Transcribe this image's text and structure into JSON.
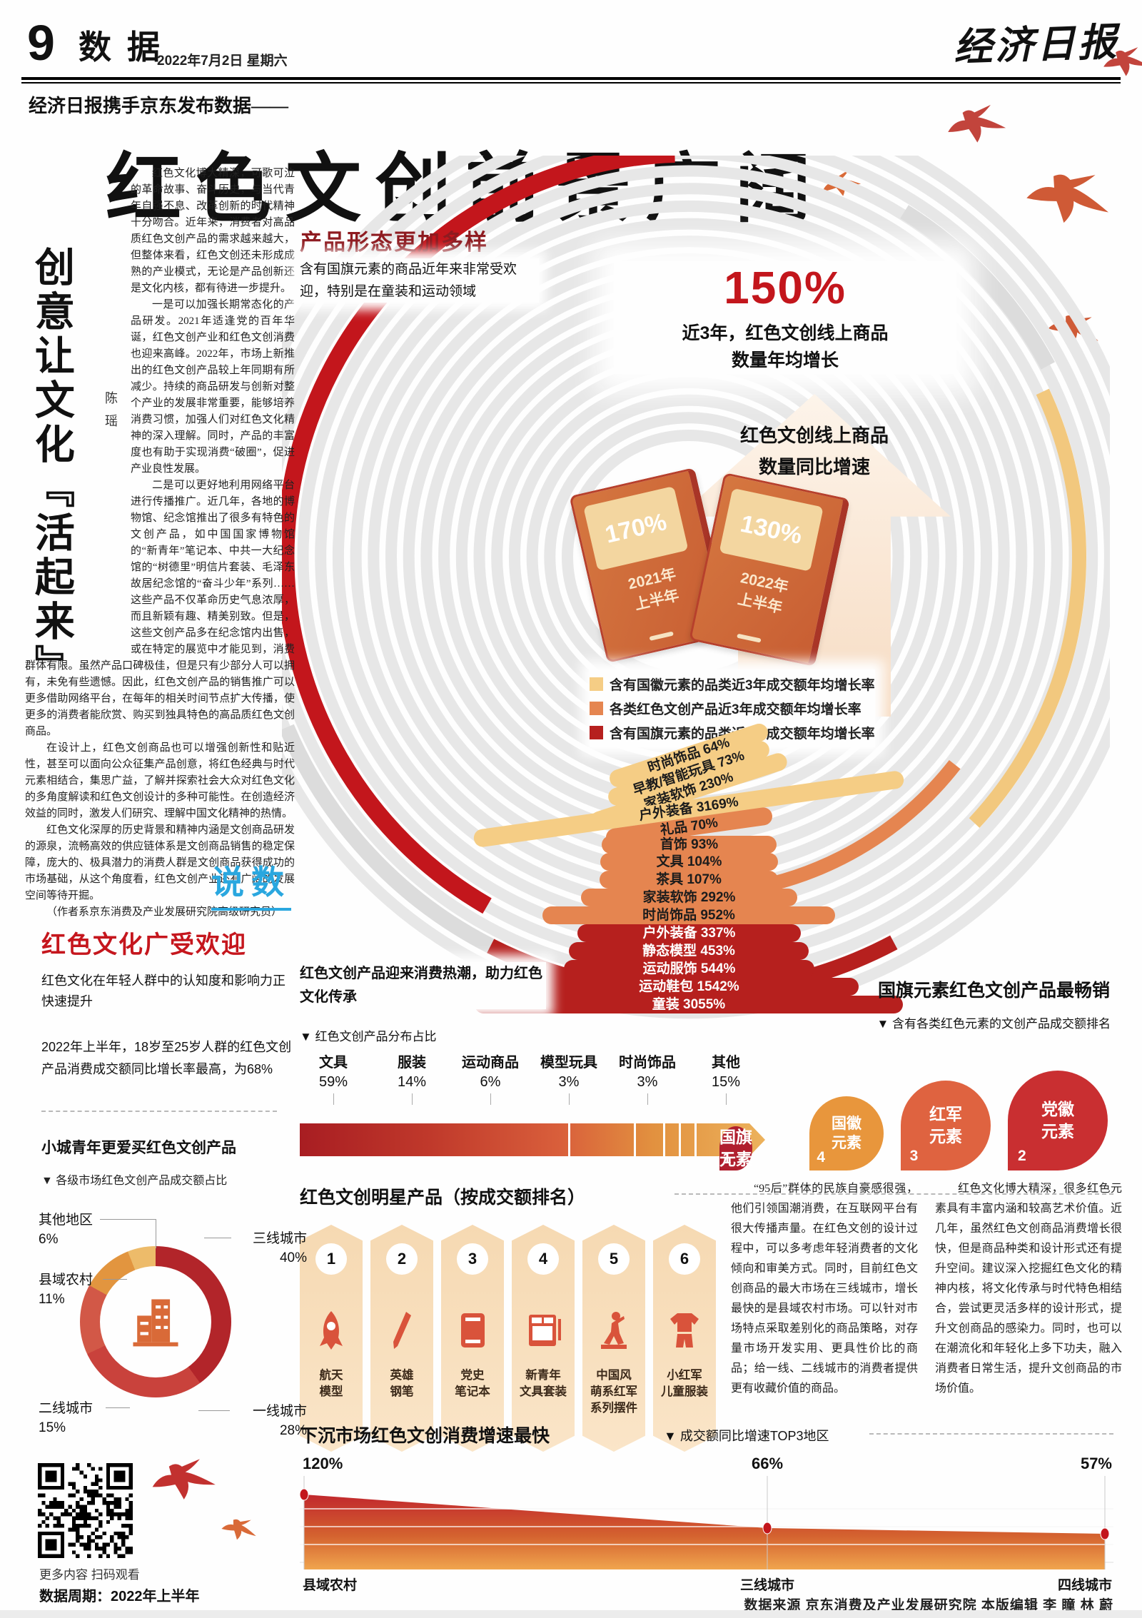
{
  "page": {
    "number": "9",
    "section": "数据",
    "date": "2022年7月2日 星期六",
    "masthead": "经济日报"
  },
  "headline": {
    "kicker": "经济日报携手京东发布数据——",
    "title": "红色文创前景广阔"
  },
  "left_article": {
    "vertical_title": "创意让文化『活起来』",
    "author": "陈瑶",
    "paragraphs": [
      "红色文化博大精深，可歌可泣的革命故事、奋斗历史，与当代青年自强不息、改革创新的时代精神十分吻合。近年来，消费者对高品质红色文创产品的需求越来越大，但整体来看，红色文创还未形成成熟的产业模式，无论是产品创新还是文化内核，都有待进一步提升。",
      "一是可以加强长期常态化的产品研发。2021年适逢党的百年华诞，红色文创产业和红色文创消费也迎来高峰。2022年，市场上新推出的红色文创产品较上年同期有所减少。持续的商品研发与创新对整个产业的发展非常重要，能够培养消费习惯，加强人们对红色文化精神的深入理解。同时，产品的丰富度也有助于实现消费“破圈”，促进产业良性发展。",
      "二是可以更好地利用网络平台进行传播推广。近几年，各地的博物馆、纪念馆推出了很多有特色的文创产品，如中国国家博物馆的“新青年”笔记本、中共一大纪念馆的“树德里”明信片套装、毛泽东故居纪念馆的“奋斗少年”系列……这些产品不仅革命历史气息浓厚，而且新颖有趣、精美别致。但是，这些文创产品多在纪念馆内出售，或在特定的展览中才能见到，消费群体有限。虽然产品口碑极佳，但是只有少部分人可以拥有，未免有些遗憾。因此，红色文创产品的销售推广可以更多借助网络平台，在每年的相关时间节点扩大传播，使更多的消费者能欣赏、购买到独具特色的高品质红色文创商品。",
      "在设计上，红色文创商品也可以增强创新性和贴近性，甚至可以面向公众征集产品创意，将红色经典与时代元素相结合，集思广益，了解并探索社会大众对红色文化的多角度解读和红色文创设计的多种可能性。在创造经济效益的同时，激发人们研究、理解中国文化精神的热情。",
      "红色文化深厚的历史背景和精神内涵是文创商品研发的源泉，流畅高效的供应链体系是文创商品销售的稳定保障，庞大的、极具潜力的消费人群是文创商品获得成功的市场基础，从这个角度看，红色文创产业还有广阔的发展空间等待开掘。"
    ],
    "byline": "（作者系京东消费及产业发展研究院高级研究员）",
    "badge": "说数"
  },
  "diverse_section": {
    "heading": "产品形态更加多样",
    "desc": "含有国旗元素的商品近年来非常受欢迎，特别是在童装和运动领域",
    "big_stat": "150%",
    "big_stat_caption": "近3年，红色文创线上商品\n数量年均增长",
    "arrow_label": "红色文创线上商品\n数量同比增速",
    "books": [
      {
        "value": "170%",
        "year": "2021年\n上半年"
      },
      {
        "value": "130%",
        "year": "2022年\n上半年"
      }
    ],
    "legend": [
      {
        "label": "含有国徽元素的品类近3年成交额年均增长率",
        "color": "#f5cd85"
      },
      {
        "label": "各类红色文创产品近3年成交额年均增长率",
        "color": "#e58550"
      },
      {
        "label": "含有国旗元素的品类近3年成交额年均增长率",
        "color": "#b6201e"
      }
    ],
    "rings": [
      {
        "label": "时尚饰品",
        "value": "64%",
        "group": "1"
      },
      {
        "label": "早教/智能玩具",
        "value": "73%",
        "group": "1"
      },
      {
        "label": "家装软饰",
        "value": "230%",
        "group": "1"
      },
      {
        "label": "户外装备",
        "value": "3169%",
        "group": "1"
      },
      {
        "label": "礼品",
        "value": "70%",
        "group": "2"
      },
      {
        "label": "首饰",
        "value": "93%",
        "group": "2"
      },
      {
        "label": "文具",
        "value": "104%",
        "group": "2"
      },
      {
        "label": "茶具",
        "value": "107%",
        "group": "2"
      },
      {
        "label": "家装软饰",
        "value": "292%",
        "group": "2"
      },
      {
        "label": "时尚饰品",
        "value": "952%",
        "group": "2"
      },
      {
        "label": "户外装备",
        "value": "337%",
        "group": "3"
      },
      {
        "label": "静态模型",
        "value": "453%",
        "group": "3"
      },
      {
        "label": "运动服饰",
        "value": "544%",
        "group": "3"
      },
      {
        "label": "运动鞋包",
        "value": "1542%",
        "group": "3"
      },
      {
        "label": "童装",
        "value": "3055%",
        "group": "3"
      }
    ]
  },
  "popular_section": {
    "heading": "红色文化广受欢迎",
    "p1": "红色文化在年轻人群中的认知度和影响力正快速提升",
    "p2": "2022年上半年，18岁至25岁人群的红色文创产品消费成交额同比增长率最高，为68%",
    "subhead": "小城青年更爱买红色文创产品",
    "donut_caption": "▼ 各级市场红色文创产品成交额占比"
  },
  "donut_labels": [
    {
      "name": "其他地区",
      "pct": "6%"
    },
    {
      "name": "县域农村",
      "pct": "11%"
    },
    {
      "name": "二线城市",
      "pct": "15%"
    },
    {
      "name": "三线城市",
      "pct": "40%"
    },
    {
      "name": "一线城市",
      "pct": "28%"
    }
  ],
  "consumption_note": "红色文创产品迎来消费热潮，助力红色文化传承",
  "distribution": {
    "caption": "▼ 红色文创产品分布占比",
    "items": [
      {
        "label": "文具",
        "pct": "59%"
      },
      {
        "label": "服装",
        "pct": "14%"
      },
      {
        "label": "运动商品",
        "pct": "6%"
      },
      {
        "label": "模型玩具",
        "pct": "3%"
      },
      {
        "label": "时尚饰品",
        "pct": "3%"
      },
      {
        "label": "其他",
        "pct": "15%"
      }
    ]
  },
  "flag_rank": {
    "heading": "国旗元素红色文创产品最畅销",
    "caption": "▼ 含有各类红色元素的文创产品成交额排名",
    "items": [
      {
        "rank": "4",
        "label": "国徽\n元素",
        "color": "#e8963c"
      },
      {
        "rank": "3",
        "label": "红军\n元素",
        "color": "#df6340"
      },
      {
        "rank": "2",
        "label": "党徽\n元素",
        "color": "#c92f31"
      },
      {
        "rank": "1",
        "label": "国旗\n元素",
        "color": "#b01f2e"
      }
    ]
  },
  "star_products": {
    "heading": "红色文创明星产品（按成交额排名）",
    "items": [
      {
        "rank": "1",
        "label": "航天\n模型",
        "icon_ref": "#sym-rocket"
      },
      {
        "rank": "2",
        "label": "英雄\n钢笔",
        "icon_ref": "#sym-pen"
      },
      {
        "rank": "3",
        "label": "党史\n笔记本",
        "icon_ref": "#sym-notebook"
      },
      {
        "rank": "4",
        "label": "新青年\n文具套装",
        "icon_ref": "#sym-kit"
      },
      {
        "rank": "5",
        "label": "中国风\n萌系红军\n系列摆件",
        "icon_ref": "#sym-figure"
      },
      {
        "rank": "6",
        "label": "小红军\n儿童服装",
        "icon_ref": "#sym-clothes"
      }
    ]
  },
  "commentary": [
    "“95后”群体的民族自豪感很强，他们引领国潮消费，在互联网平台有很大传播声量。在红色文创的设计过程中，可以多考虑年轻消费者的文化倾向和审美方式。同时，目前红色文创商品的最大市场在三线城市，增长最快的是县域农村市场。可以针对市场特点采取差别化的商品策略，对存量市场开发实用、更具性价比的商品；给一线、二线城市的消费者提供更有收藏价值的商品。",
    "红色文化博大精深，很多红色元素具有丰富内涵和较高艺术价值。近几年，虽然红色文创商品消费增长很快，但是商品种类和设计形式还有提升空间。建议深入挖掘红色文化的精神内核，将文化传承与时代特色相结合，尝试更灵活多样的设计形式，提升文创商品的感染力。同时，也可以在潮流化和年轻化上多下功夫，融入消费者日常生活，提升文创商品的市场价值。"
  ],
  "sinking_section": {
    "heading": "下沉市场红色文创消费增速最快",
    "caption": "▼ 成交额同比增速TOP3地区",
    "points": [
      {
        "label": "县域农村",
        "value": "120%"
      },
      {
        "label": "三线城市",
        "value": "66%"
      },
      {
        "label": "四线城市",
        "value": "57%"
      }
    ]
  },
  "qr": {
    "caption": "更多内容 扫码观看",
    "period": "数据周期：2022年上半年"
  },
  "footer": {
    "text": "数据来源  京东消费及产业发展研究院    本版编辑  李  瞳  林  蔚"
  },
  "chart_data": [
    {
      "id": "yoy-growth",
      "type": "bar",
      "title": "红色文创线上商品数量同比增速",
      "categories": [
        "2021年上半年",
        "2022年上半年"
      ],
      "values": [
        170,
        130
      ],
      "annotation": "近3年红色文创线上商品数量年均增长150%"
    },
    {
      "id": "category-growth-rings",
      "type": "bar",
      "title": "近3年成交额年均增长率（%）",
      "series": [
        {
          "name": "含有国徽元素的品类近3年成交额年均增长率",
          "categories": [
            "时尚饰品",
            "早教/智能玩具",
            "家装软饰",
            "户外装备"
          ],
          "values": [
            64,
            73,
            230,
            3169
          ]
        },
        {
          "name": "各类红色文创产品近3年成交额年均增长率",
          "categories": [
            "礼品",
            "首饰",
            "文具",
            "茶具",
            "家装软饰",
            "时尚饰品"
          ],
          "values": [
            70,
            93,
            104,
            107,
            292,
            952
          ]
        },
        {
          "name": "含有国旗元素的品类近3年成交额年均增长率",
          "categories": [
            "户外装备",
            "静态模型",
            "运动服饰",
            "运动鞋包",
            "童装"
          ],
          "values": [
            337,
            453,
            544,
            1542,
            3055
          ]
        }
      ],
      "legend_position": "center"
    },
    {
      "id": "product-distribution",
      "type": "bar",
      "title": "红色文创产品分布占比",
      "categories": [
        "文具",
        "服装",
        "运动商品",
        "模型玩具",
        "时尚饰品",
        "其他"
      ],
      "values": [
        59,
        14,
        6,
        3,
        3,
        15
      ]
    },
    {
      "id": "market-share",
      "type": "pie",
      "title": "各级市场红色文创产品成交额占比",
      "slices": [
        {
          "label": "三线城市",
          "value": 40,
          "color": "#b2252a"
        },
        {
          "label": "一线城市",
          "value": 28,
          "color": "#c9423c"
        },
        {
          "label": "二线城市",
          "value": 15,
          "color": "#d25847"
        },
        {
          "label": "县域农村",
          "value": 11,
          "color": "#e2953f"
        },
        {
          "label": "其他地区",
          "value": 6,
          "color": "#edbb6a"
        }
      ]
    },
    {
      "id": "element-ranking",
      "type": "table",
      "title": "含有各类红色元素的文创产品成交额排名",
      "categories": [
        "国旗元素",
        "党徽元素",
        "红军元素",
        "国徽元素"
      ],
      "values": [
        1,
        2,
        3,
        4
      ]
    },
    {
      "id": "sinking-growth",
      "type": "area",
      "title": "成交额同比增速TOP3地区",
      "categories": [
        "县域农村",
        "三线城市",
        "四线城市"
      ],
      "values": [
        120,
        66,
        57
      ],
      "ylabel": "同比增速",
      "ylim": [
        0,
        140
      ],
      "grid": true
    }
  ]
}
